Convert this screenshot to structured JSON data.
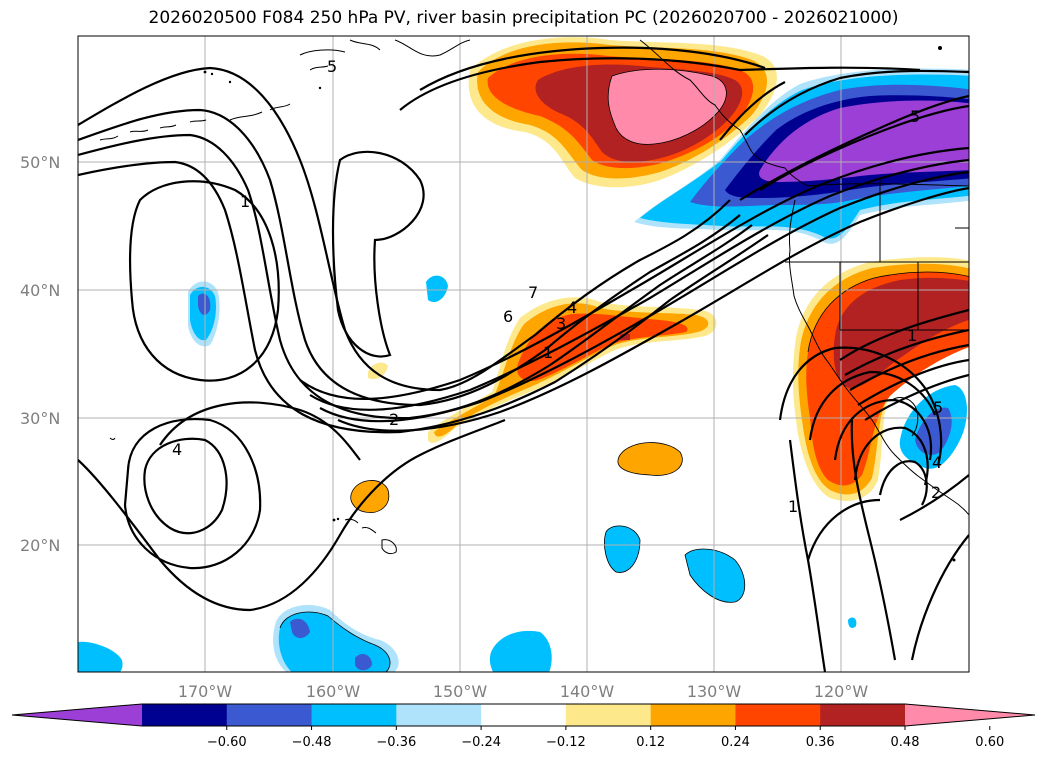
{
  "title": "2026020500 F084 250 hPa PV, river basin precipitation PC (2026020700 - 2026021000)",
  "map": {
    "lon_labels": [
      "170°W",
      "160°W",
      "150°W",
      "140°W",
      "130°W",
      "120°W"
    ],
    "lat_labels": [
      "50°N",
      "40°N",
      "30°N",
      "20°N"
    ],
    "contour_labels": [
      "5",
      "1",
      "5",
      "4",
      "7",
      "6",
      "4",
      "3",
      "1",
      "2",
      "1",
      "2",
      "5",
      "4",
      "1"
    ]
  },
  "colorbar": {
    "ticks": [
      "−0.60",
      "−0.48",
      "−0.36",
      "−0.24",
      "−0.12",
      "0.12",
      "0.24",
      "0.36",
      "0.48",
      "0.60"
    ],
    "colors": [
      "#9b3fd6",
      "#000091",
      "#3b59d1",
      "#00bfff",
      "#aee3fb",
      "#ffffff",
      "#fde98c",
      "#ffa500",
      "#ff4500",
      "#b22222",
      "#ff8aa9"
    ]
  }
}
